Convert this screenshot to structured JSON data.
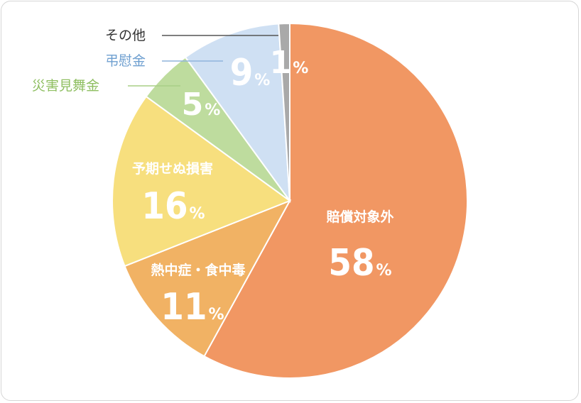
{
  "chart_data": {
    "type": "pie",
    "slices": [
      {
        "label": "賠償対象外",
        "value": 58,
        "color": "#F19763"
      },
      {
        "label": "熱中症・食中毒",
        "value": 11,
        "color": "#F1B264"
      },
      {
        "label": "予期せぬ損害",
        "value": 16,
        "color": "#F7DF7E"
      },
      {
        "label": "災害見舞金",
        "value": 5,
        "color": "#BEDC9E"
      },
      {
        "label": "弔慰金",
        "value": 9,
        "color": "#CFE0F3"
      },
      {
        "label": "その他",
        "value": 1,
        "color": "#A9A9A9"
      }
    ],
    "unit": "%",
    "outer_label_colors": {
      "その他": "#333333",
      "弔慰金": "#6E9FD0",
      "災害見舞金": "#8FBF62"
    }
  }
}
